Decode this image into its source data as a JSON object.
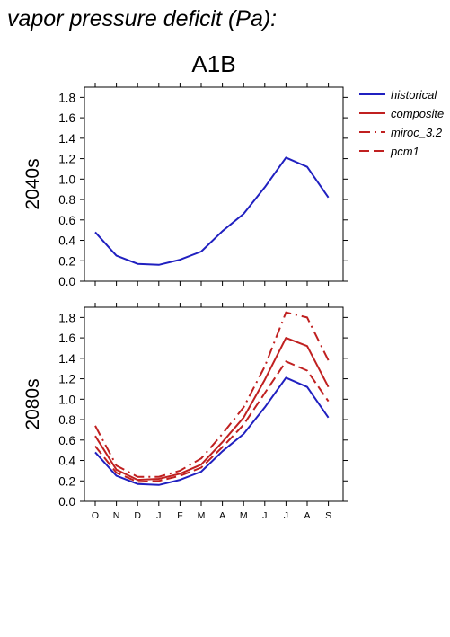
{
  "figure": {
    "title": "vapor pressure deficit (Pa):",
    "scenario": "A1B"
  },
  "legend": {
    "items": [
      {
        "label": "historical",
        "color": "#2020c0",
        "dash": "solid"
      },
      {
        "label": "composite",
        "color": "#c02020",
        "dash": "solid"
      },
      {
        "label": "miroc_3.2",
        "color": "#c02020",
        "dash": "dashdot"
      },
      {
        "label": "pcm1",
        "color": "#c02020",
        "dash": "dashed"
      }
    ]
  },
  "chart_data": [
    {
      "type": "line",
      "ylabel": "2040s",
      "ylim": [
        0,
        1.9
      ],
      "yticks": [
        "0.0",
        "0.2",
        "0.4",
        "0.6",
        "0.8",
        "1.0",
        "1.2",
        "1.4",
        "1.6",
        "1.8"
      ],
      "categories": [
        "O",
        "N",
        "D",
        "J",
        "F",
        "M",
        "A",
        "M",
        "J",
        "J",
        "A",
        "S"
      ],
      "show_xtick_labels": false,
      "series": [
        {
          "name": "historical",
          "color": "#2020c0",
          "dash": "solid",
          "values": [
            0.48,
            0.25,
            0.17,
            0.16,
            0.21,
            0.29,
            0.49,
            0.66,
            0.92,
            1.21,
            1.12,
            0.82
          ]
        }
      ]
    },
    {
      "type": "line",
      "ylabel": "2080s",
      "ylim": [
        0,
        1.9
      ],
      "yticks": [
        "0.0",
        "0.2",
        "0.4",
        "0.6",
        "0.8",
        "1.0",
        "1.2",
        "1.4",
        "1.6",
        "1.8"
      ],
      "categories": [
        "O",
        "N",
        "D",
        "J",
        "F",
        "M",
        "A",
        "M",
        "J",
        "J",
        "A",
        "S"
      ],
      "show_xtick_labels": true,
      "series": [
        {
          "name": "historical",
          "color": "#2020c0",
          "dash": "solid",
          "values": [
            0.48,
            0.25,
            0.17,
            0.16,
            0.21,
            0.29,
            0.49,
            0.66,
            0.92,
            1.21,
            1.12,
            0.82
          ]
        },
        {
          "name": "composite",
          "color": "#c02020",
          "dash": "solid",
          "values": [
            0.64,
            0.31,
            0.21,
            0.22,
            0.27,
            0.36,
            0.58,
            0.82,
            1.19,
            1.6,
            1.52,
            1.12
          ]
        },
        {
          "name": "miroc_3.2",
          "color": "#c02020",
          "dash": "dashdot",
          "values": [
            0.74,
            0.35,
            0.24,
            0.24,
            0.3,
            0.42,
            0.66,
            0.92,
            1.32,
            1.85,
            1.8,
            1.38
          ]
        },
        {
          "name": "pcm1",
          "color": "#c02020",
          "dash": "dashed",
          "values": [
            0.54,
            0.28,
            0.19,
            0.2,
            0.25,
            0.33,
            0.53,
            0.75,
            1.06,
            1.37,
            1.28,
            0.98
          ]
        }
      ]
    }
  ]
}
